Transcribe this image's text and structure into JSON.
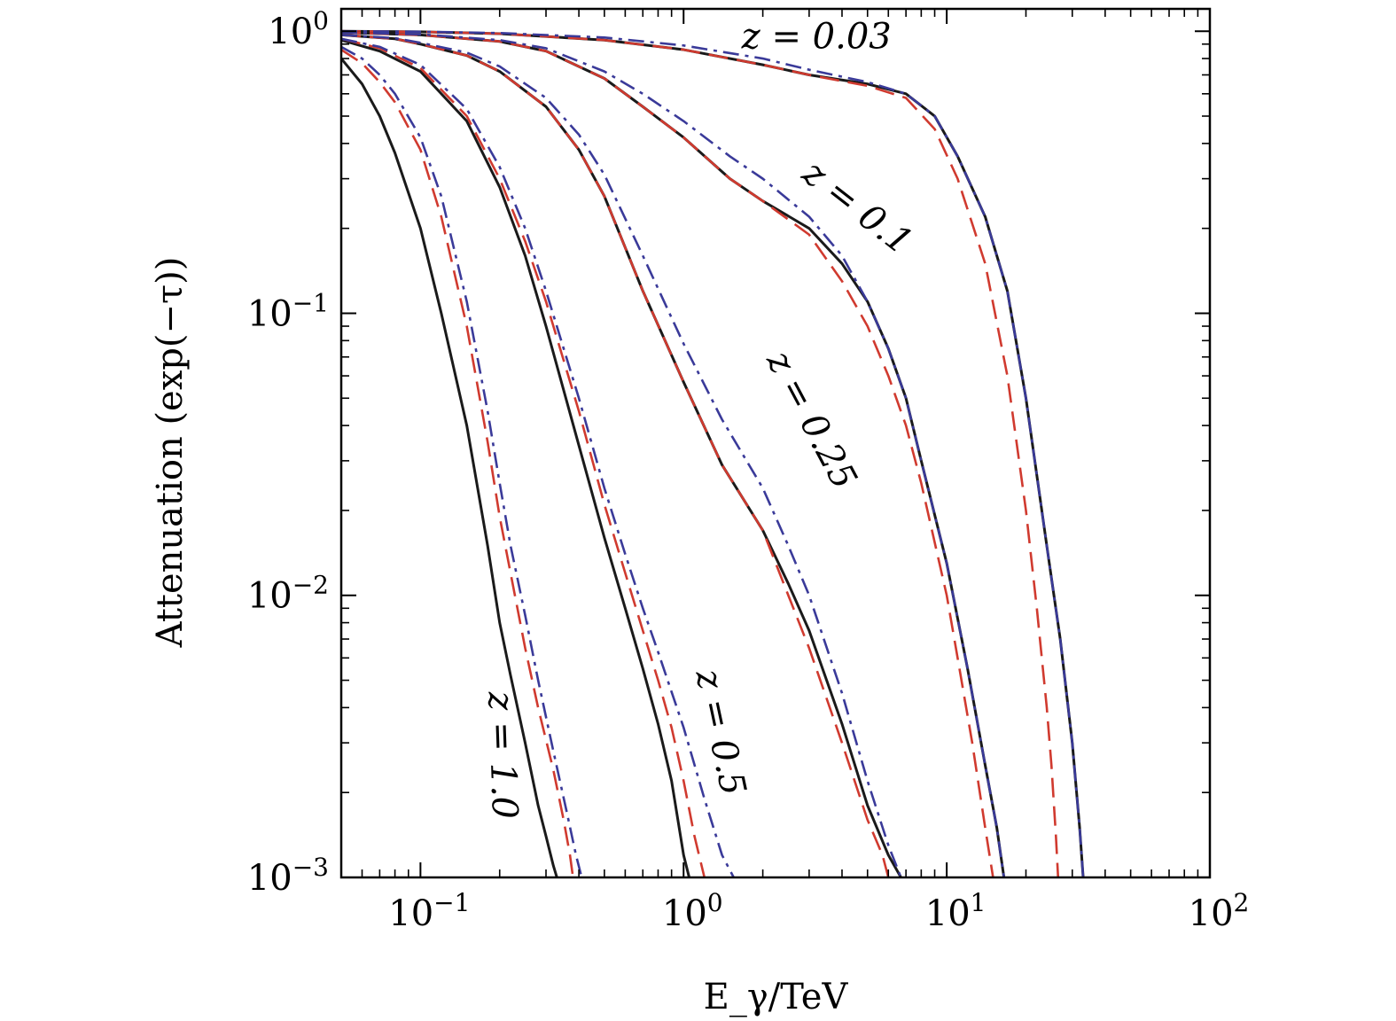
{
  "chart_data": {
    "type": "line",
    "xlabel": "E_γ/TeV",
    "ylabel": "Attenuation (exp(−τ))",
    "x_scale": "log",
    "y_scale": "log",
    "xlim": [
      0.05,
      100
    ],
    "ylim": [
      0.001,
      1.2
    ],
    "x_ticks": [
      {
        "value": 0.1,
        "base": "10",
        "exp": "−1"
      },
      {
        "value": 1,
        "base": "10",
        "exp": "0"
      },
      {
        "value": 10,
        "base": "10",
        "exp": "1"
      },
      {
        "value": 100,
        "base": "10",
        "exp": "2"
      }
    ],
    "y_ticks": [
      {
        "value": 0.001,
        "base": "10",
        "exp": "−3"
      },
      {
        "value": 0.01,
        "base": "10",
        "exp": "−2"
      },
      {
        "value": 0.1,
        "base": "10",
        "exp": "−1"
      },
      {
        "value": 1,
        "base": "10",
        "exp": "0"
      }
    ],
    "grid": false,
    "styles": {
      "solid": {
        "color": "#1a1a1a",
        "dash": ""
      },
      "dashed": {
        "color": "#d03a2f",
        "dash": "22,10"
      },
      "dashdot": {
        "color": "#3a3a99",
        "dash": "18,7,4,7"
      }
    },
    "curve_labels": [
      {
        "text": "z = 0.03",
        "x": 3.2,
        "y": 0.87,
        "angle": 0
      },
      {
        "text": "z = 0.1",
        "x": 4.3,
        "y": 0.22,
        "angle": 38
      },
      {
        "text": "z = 0.25",
        "x": 2.8,
        "y": 0.04,
        "angle": 62
      },
      {
        "text": "z = 0.5",
        "x": 1.25,
        "y": 0.0032,
        "angle": 78
      },
      {
        "text": "z = 1.0",
        "x": 0.185,
        "y": 0.0027,
        "angle": 88
      }
    ],
    "series": [
      {
        "redshift": "0.03",
        "style": "solid",
        "x": [
          0.05,
          0.1,
          0.2,
          0.5,
          1,
          2,
          3,
          5,
          7,
          9,
          11,
          14,
          17,
          20,
          24,
          27,
          30,
          32,
          33
        ],
        "y": [
          1.0,
          0.995,
          0.98,
          0.93,
          0.86,
          0.76,
          0.7,
          0.65,
          0.6,
          0.5,
          0.36,
          0.22,
          0.12,
          0.05,
          0.015,
          0.007,
          0.003,
          0.0015,
          0.001
        ]
      },
      {
        "redshift": "0.03",
        "style": "dashed",
        "x": [
          0.05,
          0.1,
          0.2,
          0.5,
          1,
          2,
          3,
          5,
          7,
          9,
          11,
          14,
          17,
          20,
          22,
          24,
          25,
          26,
          26.5
        ],
        "y": [
          1.0,
          0.995,
          0.98,
          0.93,
          0.86,
          0.76,
          0.7,
          0.64,
          0.58,
          0.45,
          0.3,
          0.15,
          0.06,
          0.02,
          0.009,
          0.004,
          0.0025,
          0.0014,
          0.001
        ]
      },
      {
        "redshift": "0.03",
        "style": "dashdot",
        "x": [
          0.05,
          0.1,
          0.2,
          0.5,
          1,
          2,
          3,
          5,
          7,
          9,
          11,
          14,
          17,
          20,
          24,
          27,
          30,
          32,
          33
        ],
        "y": [
          1.0,
          0.996,
          0.985,
          0.95,
          0.89,
          0.8,
          0.73,
          0.66,
          0.6,
          0.5,
          0.36,
          0.22,
          0.12,
          0.05,
          0.015,
          0.007,
          0.003,
          0.0015,
          0.001
        ]
      },
      {
        "redshift": "0.1",
        "style": "solid",
        "x": [
          0.05,
          0.1,
          0.2,
          0.3,
          0.5,
          0.7,
          1,
          1.5,
          2,
          3,
          4,
          5,
          6,
          7,
          8,
          10,
          12,
          14,
          15.5,
          16.5
        ],
        "y": [
          0.99,
          0.97,
          0.92,
          0.85,
          0.68,
          0.54,
          0.42,
          0.3,
          0.25,
          0.2,
          0.15,
          0.11,
          0.075,
          0.05,
          0.03,
          0.013,
          0.0055,
          0.0025,
          0.0015,
          0.001
        ]
      },
      {
        "redshift": "0.1",
        "style": "dashed",
        "x": [
          0.05,
          0.1,
          0.2,
          0.3,
          0.5,
          0.7,
          1,
          1.5,
          2,
          3,
          4,
          5,
          6,
          7,
          8,
          10,
          11,
          12.5,
          14,
          15
        ],
        "y": [
          0.99,
          0.97,
          0.92,
          0.85,
          0.68,
          0.54,
          0.42,
          0.3,
          0.25,
          0.19,
          0.13,
          0.09,
          0.06,
          0.04,
          0.025,
          0.01,
          0.006,
          0.003,
          0.0015,
          0.001
        ]
      },
      {
        "redshift": "0.1",
        "style": "dashdot",
        "x": [
          0.05,
          0.1,
          0.2,
          0.3,
          0.5,
          0.7,
          1,
          1.5,
          2,
          3,
          4,
          5,
          6,
          7,
          8,
          10,
          12,
          14,
          15.5,
          16.5
        ],
        "y": [
          0.99,
          0.975,
          0.93,
          0.87,
          0.72,
          0.6,
          0.48,
          0.36,
          0.3,
          0.22,
          0.16,
          0.11,
          0.075,
          0.05,
          0.03,
          0.013,
          0.0055,
          0.0025,
          0.0015,
          0.001
        ]
      },
      {
        "redshift": "0.25",
        "style": "solid",
        "x": [
          0.05,
          0.08,
          0.1,
          0.15,
          0.2,
          0.3,
          0.4,
          0.5,
          0.7,
          1,
          1.4,
          2,
          2.5,
          3,
          4,
          5,
          6,
          6.7
        ],
        "y": [
          0.97,
          0.94,
          0.9,
          0.82,
          0.72,
          0.54,
          0.38,
          0.26,
          0.12,
          0.057,
          0.029,
          0.017,
          0.011,
          0.0075,
          0.0035,
          0.0018,
          0.0012,
          0.001
        ]
      },
      {
        "redshift": "0.25",
        "style": "dashed",
        "x": [
          0.05,
          0.08,
          0.1,
          0.15,
          0.2,
          0.3,
          0.4,
          0.5,
          0.7,
          1,
          1.4,
          2,
          2.5,
          3,
          4,
          5,
          5.7,
          6
        ],
        "y": [
          0.97,
          0.94,
          0.9,
          0.82,
          0.72,
          0.54,
          0.38,
          0.26,
          0.12,
          0.057,
          0.029,
          0.017,
          0.01,
          0.0065,
          0.003,
          0.0016,
          0.0012,
          0.001
        ]
      },
      {
        "redshift": "0.25",
        "style": "dashdot",
        "x": [
          0.05,
          0.08,
          0.1,
          0.15,
          0.2,
          0.3,
          0.4,
          0.5,
          0.7,
          1,
          1.4,
          2,
          2.5,
          3,
          4,
          5,
          6,
          6.7
        ],
        "y": [
          0.97,
          0.945,
          0.91,
          0.84,
          0.75,
          0.58,
          0.43,
          0.31,
          0.16,
          0.078,
          0.042,
          0.024,
          0.015,
          0.01,
          0.0045,
          0.0022,
          0.0013,
          0.001
        ]
      },
      {
        "redshift": "0.5",
        "style": "solid",
        "x": [
          0.05,
          0.07,
          0.1,
          0.15,
          0.2,
          0.25,
          0.3,
          0.4,
          0.5,
          0.6,
          0.7,
          0.8,
          0.9,
          1,
          1.05
        ],
        "y": [
          0.93,
          0.85,
          0.72,
          0.48,
          0.28,
          0.16,
          0.09,
          0.034,
          0.016,
          0.009,
          0.0055,
          0.0035,
          0.0022,
          0.0012,
          0.001
        ]
      },
      {
        "redshift": "0.5",
        "style": "dashed",
        "x": [
          0.05,
          0.07,
          0.1,
          0.15,
          0.2,
          0.25,
          0.3,
          0.4,
          0.5,
          0.6,
          0.7,
          0.8,
          0.9,
          1,
          1.1,
          1.2
        ],
        "y": [
          0.94,
          0.87,
          0.74,
          0.5,
          0.3,
          0.18,
          0.11,
          0.045,
          0.021,
          0.012,
          0.0075,
          0.005,
          0.0034,
          0.0022,
          0.0014,
          0.001
        ]
      },
      {
        "redshift": "0.5",
        "style": "dashdot",
        "x": [
          0.05,
          0.07,
          0.1,
          0.15,
          0.2,
          0.25,
          0.3,
          0.4,
          0.5,
          0.6,
          0.7,
          0.8,
          1,
          1.2,
          1.4,
          1.55
        ],
        "y": [
          0.94,
          0.88,
          0.76,
          0.53,
          0.33,
          0.2,
          0.12,
          0.05,
          0.024,
          0.014,
          0.009,
          0.0063,
          0.0034,
          0.0019,
          0.0012,
          0.001
        ]
      },
      {
        "redshift": "1.0",
        "style": "solid",
        "x": [
          0.05,
          0.06,
          0.07,
          0.08,
          0.1,
          0.12,
          0.15,
          0.18,
          0.2,
          0.22,
          0.25,
          0.28,
          0.3,
          0.32,
          0.33
        ],
        "y": [
          0.8,
          0.65,
          0.5,
          0.37,
          0.2,
          0.1,
          0.04,
          0.015,
          0.008,
          0.0052,
          0.003,
          0.0018,
          0.0014,
          0.0011,
          0.001
        ]
      },
      {
        "redshift": "1.0",
        "style": "dashed",
        "x": [
          0.05,
          0.06,
          0.07,
          0.08,
          0.1,
          0.12,
          0.15,
          0.18,
          0.2,
          0.22,
          0.25,
          0.28,
          0.32,
          0.35,
          0.37,
          0.38
        ],
        "y": [
          0.86,
          0.77,
          0.66,
          0.56,
          0.38,
          0.22,
          0.09,
          0.035,
          0.019,
          0.012,
          0.0065,
          0.004,
          0.0024,
          0.0016,
          0.0012,
          0.001
        ]
      },
      {
        "redshift": "1.0",
        "style": "dashdot",
        "x": [
          0.05,
          0.06,
          0.07,
          0.08,
          0.1,
          0.12,
          0.15,
          0.18,
          0.2,
          0.22,
          0.25,
          0.28,
          0.32,
          0.36,
          0.39,
          0.41
        ],
        "y": [
          0.88,
          0.8,
          0.7,
          0.6,
          0.42,
          0.26,
          0.11,
          0.045,
          0.025,
          0.015,
          0.0085,
          0.005,
          0.0028,
          0.0017,
          0.0012,
          0.001
        ]
      }
    ]
  }
}
